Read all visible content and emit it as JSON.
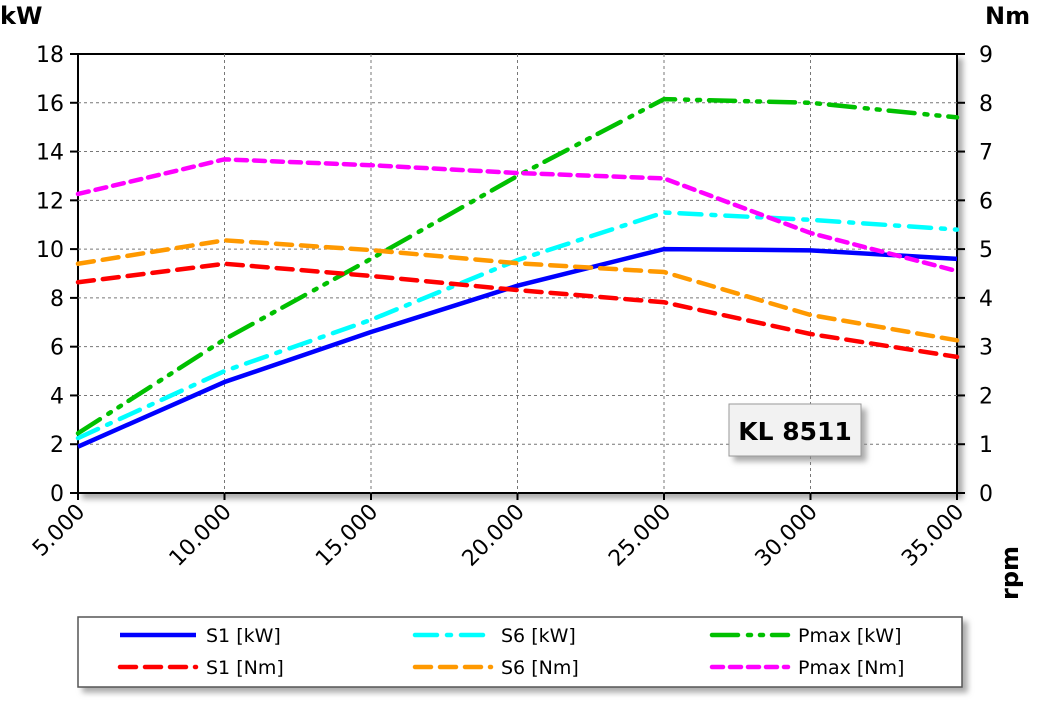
{
  "chart_data": {
    "type": "line",
    "title": "",
    "annotation": "KL 8511",
    "xlabel": "rpm",
    "ylabel_left": "kW",
    "ylabel_right": "Nm",
    "xlim": [
      5000,
      35000
    ],
    "ylim_left": [
      0,
      18
    ],
    "ylim_right": [
      0,
      9
    ],
    "x_tick_labels": [
      "5.000",
      "10.000",
      "15.000",
      "20.000",
      "25.000",
      "30.000",
      "35.000"
    ],
    "y_left_ticks": [
      "0",
      "2",
      "4",
      "6",
      "8",
      "10",
      "12",
      "14",
      "16",
      "18"
    ],
    "y_right_ticks": [
      "0",
      "1",
      "2",
      "3",
      "4",
      "5",
      "6",
      "7",
      "8",
      "9"
    ],
    "grid": true,
    "legend_placement": "bottom",
    "x": [
      5000,
      10000,
      15000,
      20000,
      25000,
      30000,
      35000
    ],
    "series": [
      {
        "name": "S1 [kW]",
        "axis": "left",
        "color": "#0000ff",
        "style": "solid",
        "values": [
          1.9,
          4.55,
          6.6,
          8.5,
          10.0,
          9.95,
          9.6
        ]
      },
      {
        "name": "S6 [kW]",
        "axis": "left",
        "color": "#00ffff",
        "style": "dashdot",
        "values": [
          2.25,
          5.0,
          7.1,
          9.55,
          11.5,
          11.2,
          10.8
        ]
      },
      {
        "name": "Pmax [kW]",
        "axis": "left",
        "color": "#00c000",
        "style": "dashdotdot",
        "values": [
          2.45,
          6.3,
          9.6,
          13.0,
          16.15,
          16.0,
          15.4
        ]
      },
      {
        "name": "S1 [Nm]",
        "axis": "right",
        "color": "#ff0000",
        "style": "dashed",
        "values": [
          4.32,
          4.7,
          4.45,
          4.16,
          3.91,
          3.26,
          2.79
        ]
      },
      {
        "name": "S6 [Nm]",
        "axis": "right",
        "color": "#ff9900",
        "style": "dashed",
        "values": [
          4.7,
          5.18,
          4.98,
          4.71,
          4.53,
          3.65,
          3.13
        ]
      },
      {
        "name": "Pmax [Nm]",
        "axis": "right",
        "color": "#ff00ff",
        "style": "shortdash",
        "values": [
          6.13,
          6.84,
          6.72,
          6.56,
          6.45,
          5.33,
          4.55
        ]
      }
    ]
  }
}
